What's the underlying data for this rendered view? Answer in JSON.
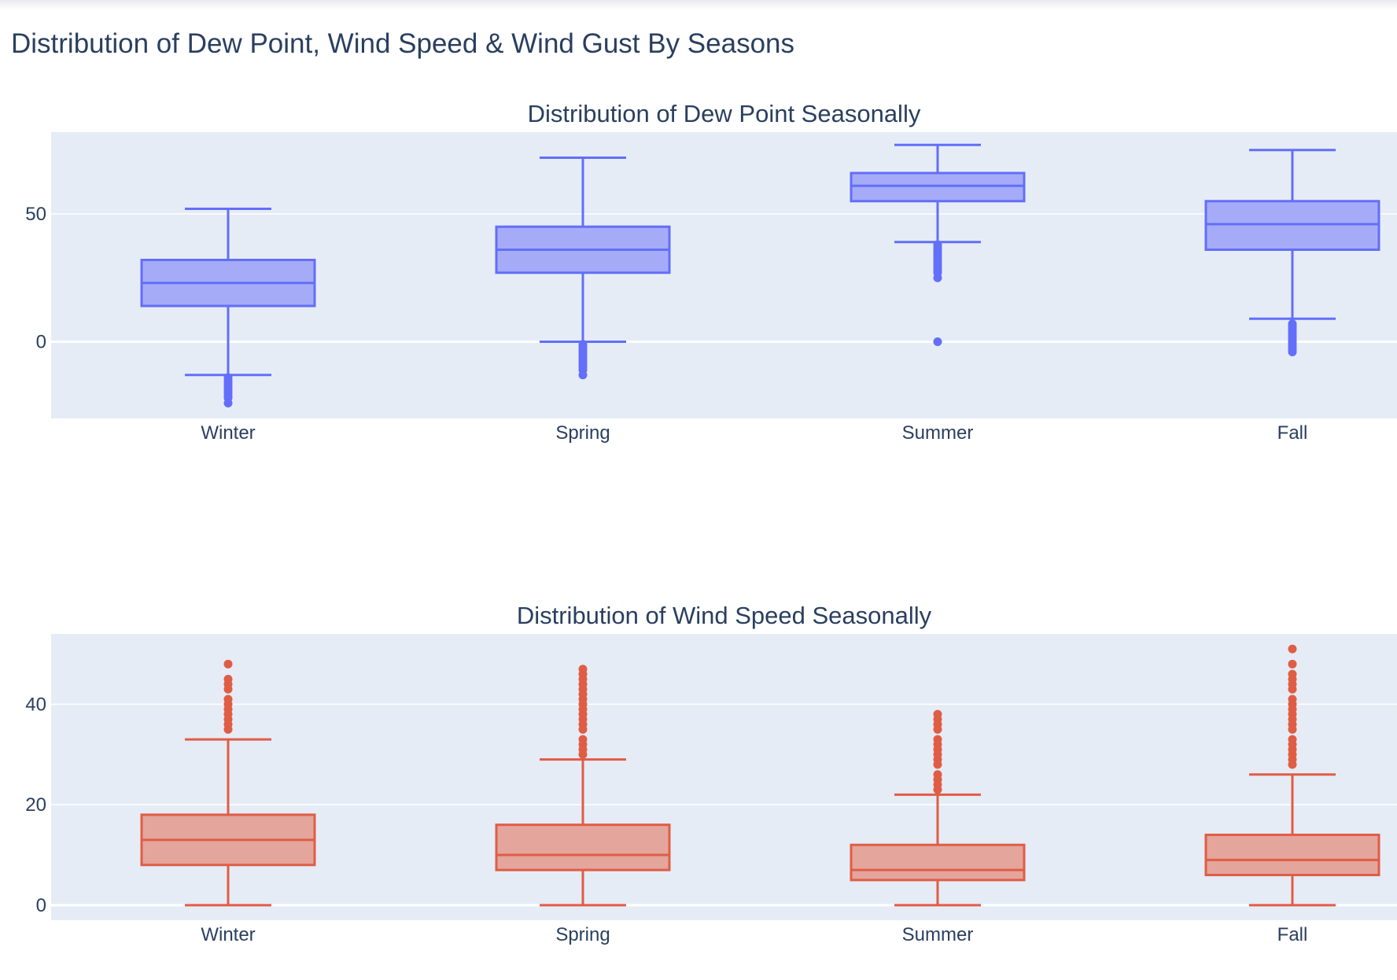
{
  "figure_title": "Distribution of Dew Point, Wind Speed & Wind Gust By Seasons",
  "chart_data": [
    {
      "type": "box",
      "title": "Distribution of Dew Point Seasonally",
      "categories": [
        "Winter",
        "Spring",
        "Summer",
        "Fall"
      ],
      "ylim": [
        -30,
        82
      ],
      "yticks": [
        0,
        50
      ],
      "color": "#636efa",
      "fill": "#a5abf7",
      "grid": true,
      "boxes": [
        {
          "name": "Winter",
          "lower_fence": -13,
          "q1": 14,
          "median": 23,
          "q3": 32,
          "upper_fence": 52,
          "outliers": [
            -14,
            -15,
            -16,
            -17,
            -18,
            -19,
            -20,
            -21,
            -22,
            -24
          ]
        },
        {
          "name": "Spring",
          "lower_fence": 0,
          "q1": 27,
          "median": 36,
          "q3": 45,
          "upper_fence": 72,
          "outliers": [
            -1,
            -2,
            -3,
            -4,
            -5,
            -6,
            -7,
            -8,
            -9,
            -10,
            -11,
            -13
          ]
        },
        {
          "name": "Summer",
          "lower_fence": 39,
          "q1": 55,
          "median": 61,
          "q3": 66,
          "upper_fence": 77,
          "outliers": [
            38,
            37,
            36,
            35,
            34,
            33,
            32,
            31,
            30,
            29,
            28,
            27,
            25,
            0
          ]
        },
        {
          "name": "Fall",
          "lower_fence": 9,
          "q1": 36,
          "median": 46,
          "q3": 55,
          "upper_fence": 75,
          "outliers": [
            7,
            6,
            5,
            4,
            3,
            2,
            1,
            0,
            -1,
            -2,
            -3,
            -4
          ]
        }
      ]
    },
    {
      "type": "box",
      "title": "Distribution of Wind Speed Seasonally",
      "categories": [
        "Winter",
        "Spring",
        "Summer",
        "Fall"
      ],
      "ylim": [
        -3,
        54
      ],
      "yticks": [
        0,
        20,
        40
      ],
      "color": "#e05d45",
      "fill": "#e4a59c",
      "grid": true,
      "boxes": [
        {
          "name": "Winter",
          "lower_fence": 0,
          "q1": 8,
          "median": 13,
          "q3": 18,
          "upper_fence": 33,
          "outliers": [
            35,
            36,
            37,
            38,
            39,
            40,
            41,
            43,
            44,
            45,
            48
          ]
        },
        {
          "name": "Spring",
          "lower_fence": 0,
          "q1": 7,
          "median": 10,
          "q3": 16,
          "upper_fence": 29,
          "outliers": [
            30,
            31,
            32,
            33,
            35,
            36,
            37,
            38,
            39,
            40,
            41,
            42,
            43,
            44,
            45,
            46,
            47
          ]
        },
        {
          "name": "Summer",
          "lower_fence": 0,
          "q1": 5,
          "median": 7,
          "q3": 12,
          "upper_fence": 22,
          "outliers": [
            23,
            24,
            25,
            26,
            28,
            29,
            30,
            31,
            32,
            33,
            35,
            36,
            37,
            38
          ]
        },
        {
          "name": "Fall",
          "lower_fence": 0,
          "q1": 6,
          "median": 9,
          "q3": 14,
          "upper_fence": 26,
          "outliers": [
            28,
            29,
            30,
            31,
            32,
            33,
            35,
            36,
            37,
            38,
            39,
            40,
            41,
            43,
            44,
            45,
            46,
            48,
            51
          ]
        }
      ]
    }
  ]
}
